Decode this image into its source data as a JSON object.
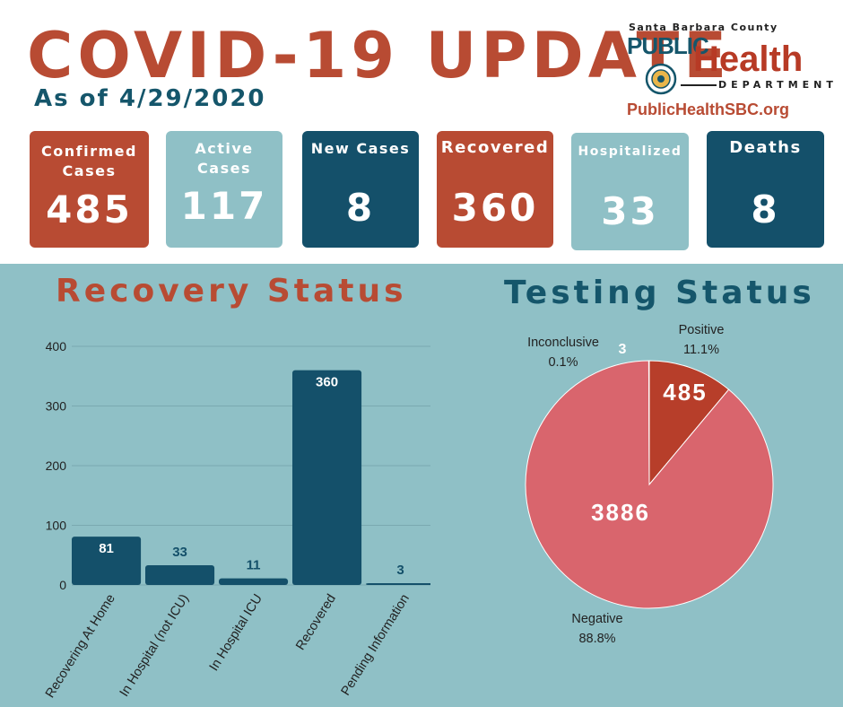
{
  "header": {
    "title": "COVID-19 UPDATE",
    "subtitle": "As of 4/29/2020",
    "logo": {
      "county": "Santa Barbara County",
      "public": "PUBLIC",
      "health": "Health",
      "department": "DEPARTMENT",
      "url": "PublicHealthSBC.org"
    }
  },
  "cards": [
    {
      "label_line1": "Confirmed",
      "label_line2": "Cases",
      "value": "485",
      "color": "#b84b33"
    },
    {
      "label_line1": "Active",
      "label_line2": "Cases",
      "value": "117",
      "color": "#8fc0c6"
    },
    {
      "label_line1": "New Cases",
      "label_line2": "",
      "value": "8",
      "color": "#14506a"
    },
    {
      "label_line1": "Recovered",
      "label_line2": "",
      "value": "360",
      "color": "#b84b33"
    },
    {
      "label_line1": "Hospitalized",
      "label_line2": "",
      "value": "33",
      "color": "#8fc0c6"
    },
    {
      "label_line1": "Deaths",
      "label_line2": "",
      "value": "8",
      "color": "#14506a"
    }
  ],
  "colors": {
    "bar": "#14506a",
    "positive": "#b73e2a",
    "negative": "#d9656d",
    "inconclusive": "#ffffff",
    "panel": "#8fc0c6"
  },
  "chart_data": [
    {
      "type": "bar",
      "title": "Recovery Status",
      "categories": [
        "Recovering At Home",
        "In Hospital (not ICU)",
        "In Hospital ICU",
        "Recovered",
        "Pending Information"
      ],
      "values": [
        81,
        33,
        11,
        360,
        3
      ],
      "ylim": [
        0,
        400
      ],
      "yticks": [
        0,
        100,
        200,
        300,
        400
      ],
      "grid": true,
      "data_labels": true
    },
    {
      "type": "pie",
      "title": "Testing Status",
      "slices": [
        {
          "label": "Positive",
          "value": 485,
          "percent": "11.1%"
        },
        {
          "label": "Negative",
          "value": 3886,
          "percent": "88.8%"
        },
        {
          "label": "Inconclusive",
          "value": 3,
          "percent": "0.1%"
        }
      ]
    }
  ]
}
